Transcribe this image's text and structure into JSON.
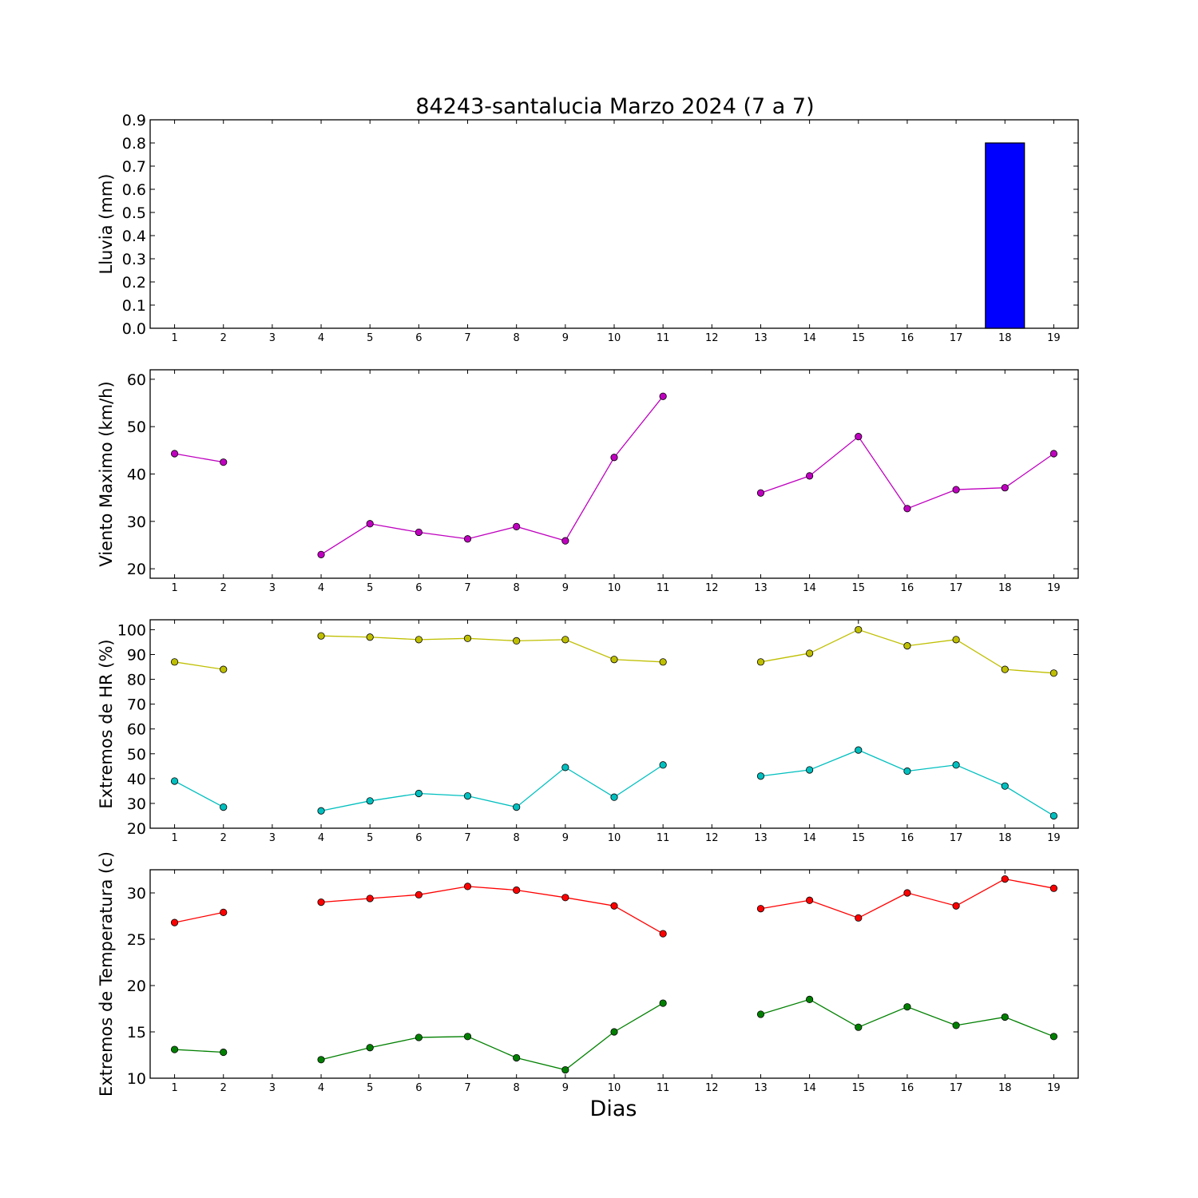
{
  "title": "84243-santalucia Marzo 2024  (7 a 7)",
  "xlabel": "Dias",
  "colors": {
    "rain_bar": "#0000ff",
    "wind": "#bf00bf",
    "hr_max": "#bfbf00",
    "hr_min": "#00bfbf",
    "temp_max": "#ff0000",
    "temp_min": "#008000"
  },
  "chart_data": [
    {
      "type": "bar",
      "ylabel": "Lluvia (mm)",
      "x": [
        1,
        2,
        3,
        4,
        5,
        6,
        7,
        8,
        9,
        10,
        11,
        12,
        13,
        14,
        15,
        16,
        17,
        18,
        19
      ],
      "xlim": [
        0.5,
        19.5
      ],
      "ylim": [
        0,
        0.9
      ],
      "yticks": [
        "0.0",
        "0.1",
        "0.2",
        "0.3",
        "0.4",
        "0.5",
        "0.6",
        "0.7",
        "0.8",
        "0.9"
      ],
      "values": [
        0,
        0,
        0,
        0,
        0,
        0,
        0,
        0,
        0,
        0,
        0,
        0,
        0,
        0,
        0,
        0,
        0,
        0.8,
        0
      ],
      "grid": false
    },
    {
      "type": "line",
      "ylabel": "Viento Maximo (km/h)",
      "x": [
        1,
        2,
        3,
        4,
        5,
        6,
        7,
        8,
        9,
        10,
        11,
        12,
        13,
        14,
        15,
        16,
        17,
        18,
        19
      ],
      "xlim": [
        0.5,
        19.5
      ],
      "ylim": [
        18,
        62
      ],
      "yticks": [
        "20",
        "30",
        "40",
        "50",
        "60"
      ],
      "series": [
        {
          "values": [
            44.3,
            42.5,
            null,
            23.0,
            29.5,
            27.7,
            26.3,
            28.9,
            25.9,
            43.5,
            56.4,
            null,
            36.0,
            39.6,
            47.9,
            32.7,
            36.7,
            37.1,
            44.3
          ]
        }
      ],
      "grid": false
    },
    {
      "type": "line",
      "ylabel": "Extremos de HR (%)",
      "x": [
        1,
        2,
        3,
        4,
        5,
        6,
        7,
        8,
        9,
        10,
        11,
        12,
        13,
        14,
        15,
        16,
        17,
        18,
        19
      ],
      "xlim": [
        0.5,
        19.5
      ],
      "ylim": [
        20,
        104
      ],
      "yticks": [
        "20",
        "30",
        "40",
        "50",
        "60",
        "70",
        "80",
        "90",
        "100"
      ],
      "series": [
        {
          "values": [
            87,
            84,
            null,
            97.5,
            97,
            96,
            96.5,
            95.5,
            96,
            88,
            87,
            null,
            87,
            90.5,
            100,
            93.5,
            96,
            84,
            82.5
          ]
        },
        {
          "values": [
            39,
            28.5,
            null,
            27,
            31,
            34,
            33,
            28.5,
            44.5,
            32.5,
            45.5,
            null,
            41,
            43.5,
            51.5,
            43,
            45.5,
            37,
            25
          ]
        }
      ],
      "grid": false
    },
    {
      "type": "line",
      "ylabel": "Extremos de Temperatura (c)",
      "x": [
        1,
        2,
        3,
        4,
        5,
        6,
        7,
        8,
        9,
        10,
        11,
        12,
        13,
        14,
        15,
        16,
        17,
        18,
        19
      ],
      "xlim": [
        0.5,
        19.5
      ],
      "ylim": [
        10,
        32.5
      ],
      "yticks": [
        "10",
        "15",
        "20",
        "25",
        "30"
      ],
      "series": [
        {
          "values": [
            26.8,
            27.9,
            null,
            29.0,
            29.4,
            29.8,
            30.7,
            30.3,
            29.5,
            28.6,
            25.6,
            null,
            28.3,
            29.2,
            27.3,
            30.0,
            28.6,
            31.5,
            30.5
          ]
        },
        {
          "values": [
            13.1,
            12.8,
            null,
            12.0,
            13.3,
            14.4,
            14.5,
            12.2,
            10.9,
            15.0,
            18.1,
            null,
            16.9,
            18.5,
            15.5,
            17.7,
            15.7,
            16.6,
            14.5
          ]
        }
      ],
      "grid": false
    }
  ]
}
